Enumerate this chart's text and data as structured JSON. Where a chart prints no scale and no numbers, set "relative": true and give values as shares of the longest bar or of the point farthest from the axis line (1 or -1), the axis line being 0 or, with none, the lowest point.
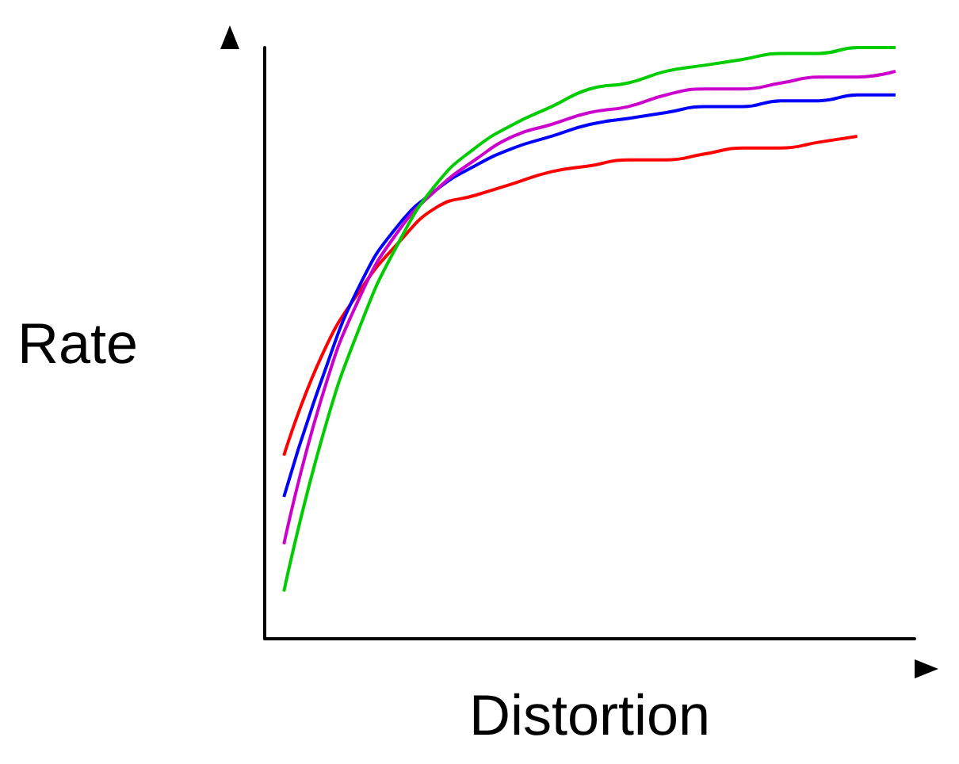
{
  "chart_data": {
    "type": "line",
    "relative": true,
    "xlabel": "Distortion",
    "ylabel": "Rate",
    "grid": false,
    "marker": "none",
    "line_style": "solid",
    "categories": [
      null,
      null,
      null,
      null,
      null,
      null,
      null,
      null,
      null,
      null,
      null,
      null,
      null,
      null,
      null,
      null,
      null
    ],
    "series": [
      {
        "color": "#ff0000",
        "values": [
          0.31,
          0.48,
          0.59,
          0.67,
          0.73,
          0.75,
          0.77,
          0.79,
          0.8,
          0.81,
          0.81,
          0.82,
          0.83,
          0.83,
          0.84,
          0.85,
          null
        ]
      },
      {
        "color": "#0000ff",
        "values": [
          0.24,
          0.44,
          0.6,
          0.7,
          0.76,
          0.8,
          0.83,
          0.85,
          0.87,
          0.88,
          0.89,
          0.9,
          0.9,
          0.91,
          0.91,
          0.92,
          0.92
        ]
      },
      {
        "color": "#cc00cc",
        "values": [
          0.16,
          0.41,
          0.58,
          0.69,
          0.76,
          0.81,
          0.85,
          0.87,
          0.89,
          0.9,
          0.92,
          0.93,
          0.93,
          0.94,
          0.95,
          0.95,
          0.96
        ]
      },
      {
        "color": "#00cc00",
        "values": [
          0.08,
          0.34,
          0.53,
          0.67,
          0.77,
          0.83,
          0.87,
          0.9,
          0.93,
          0.94,
          0.96,
          0.97,
          0.98,
          0.99,
          0.99,
          1.0,
          1.0
        ]
      }
    ]
  }
}
